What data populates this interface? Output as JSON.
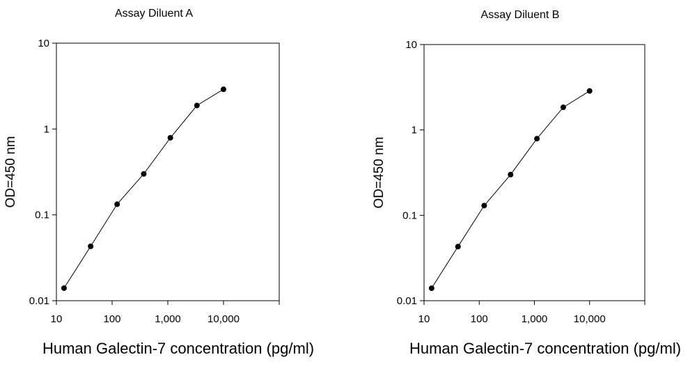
{
  "chart_data": [
    {
      "type": "line",
      "title": "Assay Diluent A",
      "xlabel": "Human Galectin-7 concentration (pg/ml)",
      "ylabel": "OD=450 nm",
      "x_scale": "log",
      "y_scale": "log",
      "xlim": [
        10,
        100000
      ],
      "ylim": [
        0.01,
        10
      ],
      "x_ticks": [
        10,
        100,
        1000,
        10000
      ],
      "x_tick_labels": [
        "10",
        "100",
        "1,000",
        "10,000"
      ],
      "y_ticks": [
        0.01,
        0.1,
        1,
        10
      ],
      "y_tick_labels": [
        "0.01",
        "0.1",
        "1",
        "10"
      ],
      "grid": false,
      "series": [
        {
          "x": [
            13.7,
            41.2,
            123,
            370,
            1111,
            3333,
            10000
          ],
          "y": [
            0.014,
            0.043,
            0.133,
            0.3,
            0.79,
            1.88,
            2.9
          ]
        }
      ]
    },
    {
      "type": "line",
      "title": "Assay Diluent B",
      "xlabel": "Human Galectin-7 concentration (pg/ml)",
      "ylabel": "OD=450 nm",
      "x_scale": "log",
      "y_scale": "log",
      "xlim": [
        10,
        100000
      ],
      "ylim": [
        0.01,
        10
      ],
      "x_ticks": [
        10,
        100,
        1000,
        10000
      ],
      "x_tick_labels": [
        "10",
        "100",
        "1,000",
        "10,000"
      ],
      "y_ticks": [
        0.01,
        0.1,
        1,
        10
      ],
      "y_tick_labels": [
        "0.01",
        "0.1",
        "1",
        "10"
      ],
      "grid": false,
      "series": [
        {
          "x": [
            13.7,
            41.2,
            123,
            370,
            1111,
            3333,
            10000
          ],
          "y": [
            0.014,
            0.043,
            0.13,
            0.3,
            0.79,
            1.84,
            2.86
          ]
        }
      ]
    }
  ]
}
